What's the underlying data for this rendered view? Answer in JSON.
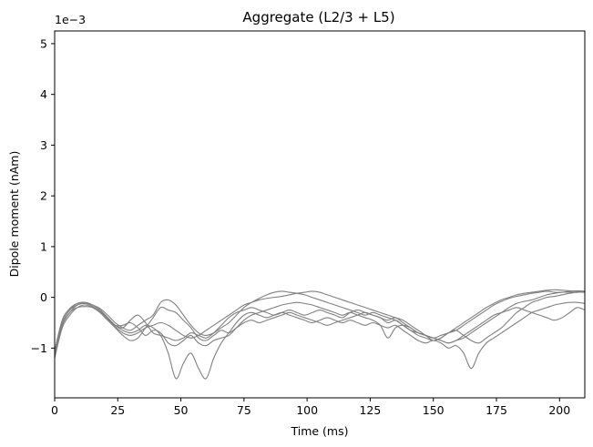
{
  "chart_data": {
    "type": "line",
    "title": "Aggregate (L2/3 + L5)",
    "xlabel": "Time (ms)",
    "ylabel": "Dipole moment (nAm)",
    "offset_label": "1e−3",
    "xlim": [
      0,
      210
    ],
    "ylim": [
      -1.98,
      5.25
    ],
    "x_ticks": [
      0,
      25,
      50,
      75,
      100,
      125,
      150,
      175,
      200
    ],
    "x_tick_labels": [
      "0",
      "25",
      "50",
      "75",
      "100",
      "125",
      "150",
      "175",
      "200"
    ],
    "y_ticks": [
      -1,
      0,
      1,
      2,
      3,
      4,
      5
    ],
    "y_tick_labels": [
      "−1",
      "0",
      "1",
      "2",
      "3",
      "4",
      "5"
    ],
    "grid": false,
    "line_color": "#808080",
    "series": [
      {
        "x": [
          0,
          3,
          6,
          9,
          12,
          15,
          18,
          21,
          24,
          27,
          30,
          33,
          36,
          39,
          42,
          45,
          48,
          51,
          54,
          57,
          60,
          63,
          66,
          69,
          72,
          75,
          78,
          81,
          84,
          87,
          90,
          93,
          96,
          99,
          102,
          105,
          108,
          111,
          114,
          117,
          120,
          123,
          126,
          129,
          132,
          135,
          138,
          141,
          144,
          147,
          150,
          153,
          156,
          159,
          162,
          165,
          168,
          171,
          174,
          177,
          180,
          183,
          186,
          189,
          192,
          195,
          198,
          201,
          204,
          207,
          210
        ],
        "y": [
          -1.15,
          -0.55,
          -0.3,
          -0.2,
          -0.18,
          -0.2,
          -0.3,
          -0.45,
          -0.55,
          -0.6,
          -0.45,
          -0.35,
          -0.5,
          -0.7,
          -0.75,
          -0.8,
          -0.85,
          -0.8,
          -0.7,
          -0.75,
          -0.8,
          -0.7,
          -0.55,
          -0.4,
          -0.3,
          -0.25,
          -0.2,
          -0.25,
          -0.3,
          -0.35,
          -0.3,
          -0.25,
          -0.3,
          -0.35,
          -0.3,
          -0.25,
          -0.3,
          -0.35,
          -0.4,
          -0.3,
          -0.25,
          -0.3,
          -0.35,
          -0.4,
          -0.5,
          -0.45,
          -0.55,
          -0.65,
          -0.75,
          -0.8,
          -0.85,
          -0.8,
          -0.7,
          -0.65,
          -0.75,
          -0.85,
          -0.9,
          -0.8,
          -0.7,
          -0.6,
          -0.45,
          -0.3,
          -0.2,
          -0.1,
          -0.05,
          0.0,
          0.02,
          0.05,
          0.08,
          0.1,
          0.1
        ]
      },
      {
        "x": [
          0,
          3,
          6,
          9,
          12,
          15,
          18,
          21,
          24,
          27,
          30,
          33,
          36,
          39,
          42,
          45,
          48,
          51,
          54,
          57,
          60,
          63,
          66,
          69,
          72,
          75,
          78,
          81,
          84,
          87,
          90,
          93,
          96,
          99,
          102,
          105,
          108,
          111,
          114,
          117,
          120,
          123,
          126,
          129,
          132,
          135,
          138,
          141,
          144,
          147,
          150,
          153,
          156,
          159,
          162,
          165,
          168,
          171,
          174,
          177,
          180,
          183,
          186,
          189,
          192,
          195,
          198,
          201,
          204,
          207,
          210
        ],
        "y": [
          -1.1,
          -0.5,
          -0.25,
          -0.12,
          -0.1,
          -0.15,
          -0.25,
          -0.4,
          -0.55,
          -0.65,
          -0.7,
          -0.65,
          -0.55,
          -0.6,
          -0.75,
          -1.1,
          -1.6,
          -1.3,
          -1.1,
          -1.4,
          -1.6,
          -1.2,
          -0.9,
          -0.7,
          -0.5,
          -0.35,
          -0.3,
          -0.35,
          -0.4,
          -0.35,
          -0.3,
          -0.35,
          -0.4,
          -0.45,
          -0.5,
          -0.45,
          -0.4,
          -0.45,
          -0.5,
          -0.45,
          -0.5,
          -0.55,
          -0.5,
          -0.55,
          -0.6,
          -0.55,
          -0.65,
          -0.75,
          -0.85,
          -0.9,
          -0.85,
          -0.9,
          -1.0,
          -0.95,
          -1.1,
          -1.4,
          -1.1,
          -0.9,
          -0.8,
          -0.7,
          -0.6,
          -0.5,
          -0.4,
          -0.3,
          -0.25,
          -0.2,
          -0.15,
          -0.12,
          -0.1,
          -0.1,
          -0.12
        ]
      },
      {
        "x": [
          0,
          3,
          6,
          9,
          12,
          15,
          18,
          21,
          24,
          27,
          30,
          33,
          36,
          39,
          42,
          45,
          48,
          51,
          54,
          57,
          60,
          63,
          66,
          69,
          72,
          75,
          78,
          81,
          84,
          87,
          90,
          93,
          96,
          99,
          102,
          105,
          108,
          111,
          114,
          117,
          120,
          123,
          126,
          129,
          132,
          135,
          138,
          141,
          144,
          147,
          150,
          153,
          156,
          159,
          162,
          165,
          168,
          171,
          174,
          177,
          180,
          183,
          186,
          189,
          192,
          195,
          198,
          201,
          204,
          207,
          210
        ],
        "y": [
          -1.2,
          -0.6,
          -0.35,
          -0.2,
          -0.15,
          -0.2,
          -0.3,
          -0.45,
          -0.6,
          -0.75,
          -0.85,
          -0.8,
          -0.6,
          -0.4,
          -0.2,
          -0.25,
          -0.3,
          -0.45,
          -0.6,
          -0.8,
          -0.85,
          -0.75,
          -0.65,
          -0.7,
          -0.6,
          -0.5,
          -0.45,
          -0.5,
          -0.45,
          -0.4,
          -0.35,
          -0.3,
          -0.35,
          -0.4,
          -0.45,
          -0.5,
          -0.55,
          -0.5,
          -0.45,
          -0.4,
          -0.35,
          -0.3,
          -0.35,
          -0.4,
          -0.45,
          -0.4,
          -0.5,
          -0.6,
          -0.7,
          -0.75,
          -0.8,
          -0.85,
          -0.9,
          -0.85,
          -0.75,
          -0.65,
          -0.55,
          -0.45,
          -0.35,
          -0.3,
          -0.25,
          -0.2,
          -0.25,
          -0.3,
          -0.35,
          -0.4,
          -0.45,
          -0.4,
          -0.3,
          -0.2,
          -0.25
        ]
      },
      {
        "x": [
          0,
          3,
          6,
          9,
          12,
          15,
          18,
          21,
          24,
          27,
          30,
          33,
          36,
          39,
          42,
          45,
          48,
          51,
          54,
          57,
          60,
          63,
          66,
          69,
          72,
          75,
          78,
          81,
          84,
          87,
          90,
          93,
          96,
          99,
          102,
          105,
          108,
          111,
          114,
          117,
          120,
          123,
          126,
          129,
          132,
          135,
          138,
          141,
          144,
          147,
          150,
          153,
          156,
          159,
          162,
          165,
          168,
          171,
          174,
          177,
          180,
          183,
          186,
          189,
          192,
          195,
          198,
          201,
          204,
          207,
          210
        ],
        "y": [
          -1.05,
          -0.45,
          -0.22,
          -0.12,
          -0.1,
          -0.15,
          -0.25,
          -0.4,
          -0.55,
          -0.55,
          -0.5,
          -0.6,
          -0.75,
          -0.65,
          -0.7,
          -0.9,
          -0.95,
          -0.85,
          -0.75,
          -0.9,
          -0.95,
          -0.85,
          -0.8,
          -0.75,
          -0.6,
          -0.45,
          -0.35,
          -0.3,
          -0.25,
          -0.2,
          -0.15,
          -0.12,
          -0.1,
          -0.12,
          -0.15,
          -0.2,
          -0.25,
          -0.3,
          -0.35,
          -0.3,
          -0.35,
          -0.4,
          -0.45,
          -0.55,
          -0.8,
          -0.6,
          -0.55,
          -0.6,
          -0.7,
          -0.75,
          -0.8,
          -0.85,
          -0.9,
          -0.85,
          -0.8,
          -0.7,
          -0.6,
          -0.5,
          -0.4,
          -0.3,
          -0.2,
          -0.12,
          -0.08,
          -0.05,
          0.0,
          0.05,
          0.08,
          0.1,
          0.1,
          0.1,
          0.12
        ]
      },
      {
        "x": [
          0,
          3,
          6,
          9,
          12,
          15,
          18,
          21,
          24,
          27,
          30,
          33,
          36,
          39,
          42,
          45,
          48,
          51,
          54,
          57,
          60,
          63,
          66,
          69,
          72,
          75,
          78,
          81,
          84,
          87,
          90,
          93,
          96,
          99,
          102,
          105,
          108,
          111,
          114,
          117,
          120,
          123,
          126,
          129,
          132,
          135,
          138,
          141,
          144,
          147,
          150,
          153,
          156,
          159,
          162,
          165,
          168,
          171,
          174,
          177,
          180,
          183,
          186,
          189,
          192,
          195,
          198,
          201,
          204,
          207,
          210
        ],
        "y": [
          -1.15,
          -0.55,
          -0.3,
          -0.15,
          -0.12,
          -0.18,
          -0.28,
          -0.42,
          -0.58,
          -0.7,
          -0.75,
          -0.7,
          -0.6,
          -0.55,
          -0.5,
          -0.55,
          -0.65,
          -0.75,
          -0.8,
          -0.75,
          -0.65,
          -0.55,
          -0.45,
          -0.35,
          -0.25,
          -0.15,
          -0.1,
          -0.05,
          -0.02,
          0.0,
          0.02,
          0.05,
          0.08,
          0.1,
          0.12,
          0.1,
          0.05,
          0.0,
          -0.05,
          -0.1,
          -0.15,
          -0.2,
          -0.25,
          -0.3,
          -0.35,
          -0.4,
          -0.45,
          -0.55,
          -0.65,
          -0.75,
          -0.85,
          -0.8,
          -0.7,
          -0.6,
          -0.5,
          -0.4,
          -0.3,
          -0.2,
          -0.12,
          -0.05,
          0.0,
          0.05,
          0.08,
          0.1,
          0.12,
          0.14,
          0.15,
          0.14,
          0.13,
          0.12,
          0.12
        ]
      },
      {
        "x": [
          0,
          3,
          6,
          9,
          12,
          15,
          18,
          21,
          24,
          27,
          30,
          33,
          36,
          39,
          42,
          45,
          48,
          51,
          54,
          57,
          60,
          63,
          66,
          69,
          72,
          75,
          78,
          81,
          84,
          87,
          90,
          93,
          96,
          99,
          102,
          105,
          108,
          111,
          114,
          117,
          120,
          123,
          126,
          129,
          132,
          135,
          138,
          141,
          144,
          147,
          150,
          153,
          156,
          159,
          162,
          165,
          168,
          171,
          174,
          177,
          180,
          183,
          186,
          189,
          192,
          195,
          198,
          201,
          204,
          207,
          210
        ],
        "y": [
          -1.1,
          -0.5,
          -0.25,
          -0.15,
          -0.12,
          -0.15,
          -0.22,
          -0.35,
          -0.5,
          -0.6,
          -0.65,
          -0.55,
          -0.45,
          -0.35,
          -0.1,
          -0.05,
          -0.15,
          -0.35,
          -0.55,
          -0.7,
          -0.75,
          -0.7,
          -0.6,
          -0.5,
          -0.35,
          -0.2,
          -0.1,
          -0.02,
          0.05,
          0.1,
          0.12,
          0.1,
          0.08,
          0.05,
          0.0,
          -0.05,
          -0.1,
          -0.15,
          -0.2,
          -0.25,
          -0.3,
          -0.35,
          -0.3,
          -0.35,
          -0.4,
          -0.45,
          -0.55,
          -0.65,
          -0.7,
          -0.75,
          -0.8,
          -0.75,
          -0.7,
          -0.65,
          -0.55,
          -0.45,
          -0.35,
          -0.25,
          -0.15,
          -0.08,
          -0.02,
          0.02,
          0.05,
          0.08,
          0.1,
          0.12,
          0.1,
          0.1,
          0.12,
          0.13,
          0.12
        ]
      }
    ]
  }
}
